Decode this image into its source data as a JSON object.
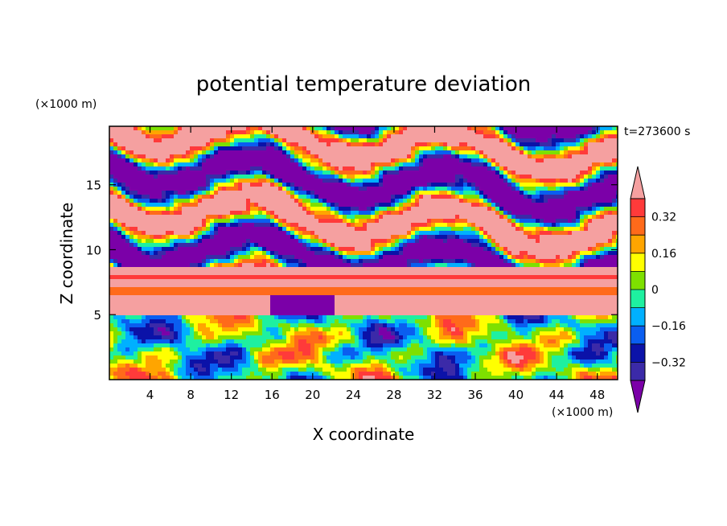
{
  "chart_data": {
    "type": "heatmap",
    "subtype": "filled-contour",
    "title": "potential temperature deviation",
    "xlabel": "X coordinate",
    "ylabel": "Z coordinate",
    "x_unit": "(×1000 m)",
    "z_unit": "(×1000 m)",
    "time_label": "t=273600 s",
    "xlim": [
      0,
      50
    ],
    "zlim": [
      0,
      19.5
    ],
    "x_ticks": [
      4,
      8,
      12,
      16,
      20,
      24,
      28,
      32,
      36,
      40,
      44,
      48
    ],
    "z_ticks": [
      5,
      10,
      15
    ],
    "colorbar": {
      "levels": [
        -0.4,
        -0.32,
        -0.24,
        -0.16,
        -0.08,
        0,
        0.08,
        0.16,
        0.24,
        0.32,
        0.4
      ],
      "tick_labels": [
        "0.32",
        "0.16",
        "0",
        "−0.16",
        "−0.32"
      ],
      "tick_values": [
        0.32,
        0.16,
        0,
        -0.16,
        -0.32
      ],
      "colors": [
        "#7b00a8",
        "#3b2aa8",
        "#0b12a8",
        "#0a5ef0",
        "#00b0ff",
        "#1ef0a0",
        "#7ee000",
        "#ffff00",
        "#ffa500",
        "#ff6a1a",
        "#ff3a3a",
        "#f5a0a0"
      ],
      "extend": "both"
    },
    "grid": false
  }
}
